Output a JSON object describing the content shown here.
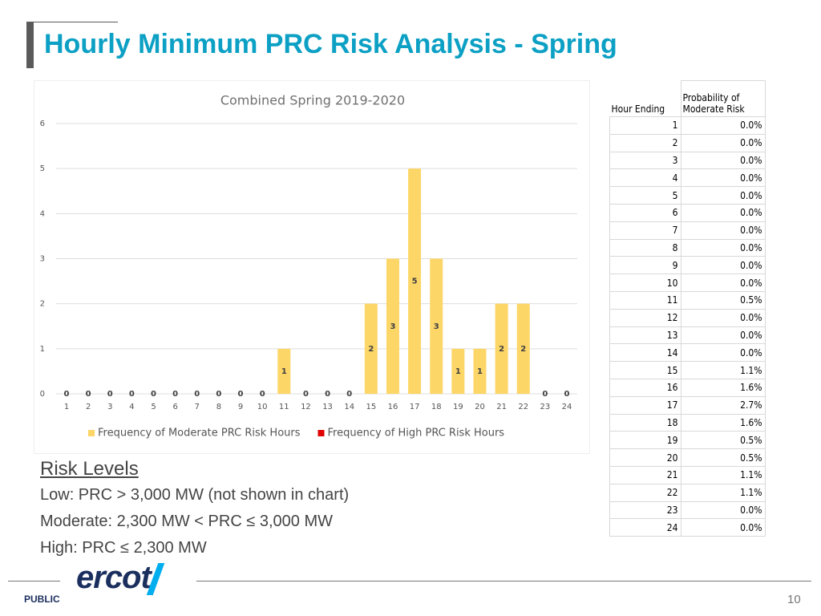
{
  "title": "Hourly Minimum PRC Risk Analysis - Spring",
  "chart_data": {
    "type": "bar",
    "title": "Combined Spring 2019-2020",
    "categories": [
      "1",
      "2",
      "3",
      "4",
      "5",
      "6",
      "7",
      "8",
      "9",
      "10",
      "11",
      "12",
      "13",
      "14",
      "15",
      "16",
      "17",
      "18",
      "19",
      "20",
      "21",
      "22",
      "23",
      "24"
    ],
    "series": [
      {
        "name": "Frequency of Moderate PRC Risk Hours",
        "color": "#fdd668",
        "values": [
          0,
          0,
          0,
          0,
          0,
          0,
          0,
          0,
          0,
          0,
          1,
          0,
          0,
          0,
          2,
          3,
          5,
          3,
          1,
          1,
          2,
          2,
          0,
          0
        ]
      },
      {
        "name": "Frequency of High PRC Risk Hours",
        "color": "#e00000",
        "values": [
          0,
          0,
          0,
          0,
          0,
          0,
          0,
          0,
          0,
          0,
          0,
          0,
          0,
          0,
          0,
          0,
          0,
          0,
          0,
          0,
          0,
          0,
          0,
          0
        ]
      }
    ],
    "ylim": [
      0,
      6
    ],
    "yticks": [
      0,
      1,
      2,
      3,
      4,
      5,
      6
    ],
    "grid": true,
    "legend": "bottom"
  },
  "table": {
    "header": [
      "Hour Ending",
      "Probability of Moderate Risk"
    ],
    "rows": [
      [
        "1",
        "0.0%"
      ],
      [
        "2",
        "0.0%"
      ],
      [
        "3",
        "0.0%"
      ],
      [
        "4",
        "0.0%"
      ],
      [
        "5",
        "0.0%"
      ],
      [
        "6",
        "0.0%"
      ],
      [
        "7",
        "0.0%"
      ],
      [
        "8",
        "0.0%"
      ],
      [
        "9",
        "0.0%"
      ],
      [
        "10",
        "0.0%"
      ],
      [
        "11",
        "0.5%"
      ],
      [
        "12",
        "0.0%"
      ],
      [
        "13",
        "0.0%"
      ],
      [
        "14",
        "0.0%"
      ],
      [
        "15",
        "1.1%"
      ],
      [
        "16",
        "1.6%"
      ],
      [
        "17",
        "2.7%"
      ],
      [
        "18",
        "1.6%"
      ],
      [
        "19",
        "0.5%"
      ],
      [
        "20",
        "0.5%"
      ],
      [
        "21",
        "1.1%"
      ],
      [
        "22",
        "1.1%"
      ],
      [
        "23",
        "0.0%"
      ],
      [
        "24",
        "0.0%"
      ]
    ]
  },
  "risk_levels": {
    "heading": "Risk Levels",
    "items": [
      "Low: PRC > 3,000 MW (not shown in chart)",
      "Moderate: 2,300 MW < PRC ≤ 3,000 MW",
      "High: PRC ≤ 2,300 MW"
    ]
  },
  "footer": {
    "logo": "ercot",
    "classification": "PUBLIC",
    "page": "10"
  }
}
